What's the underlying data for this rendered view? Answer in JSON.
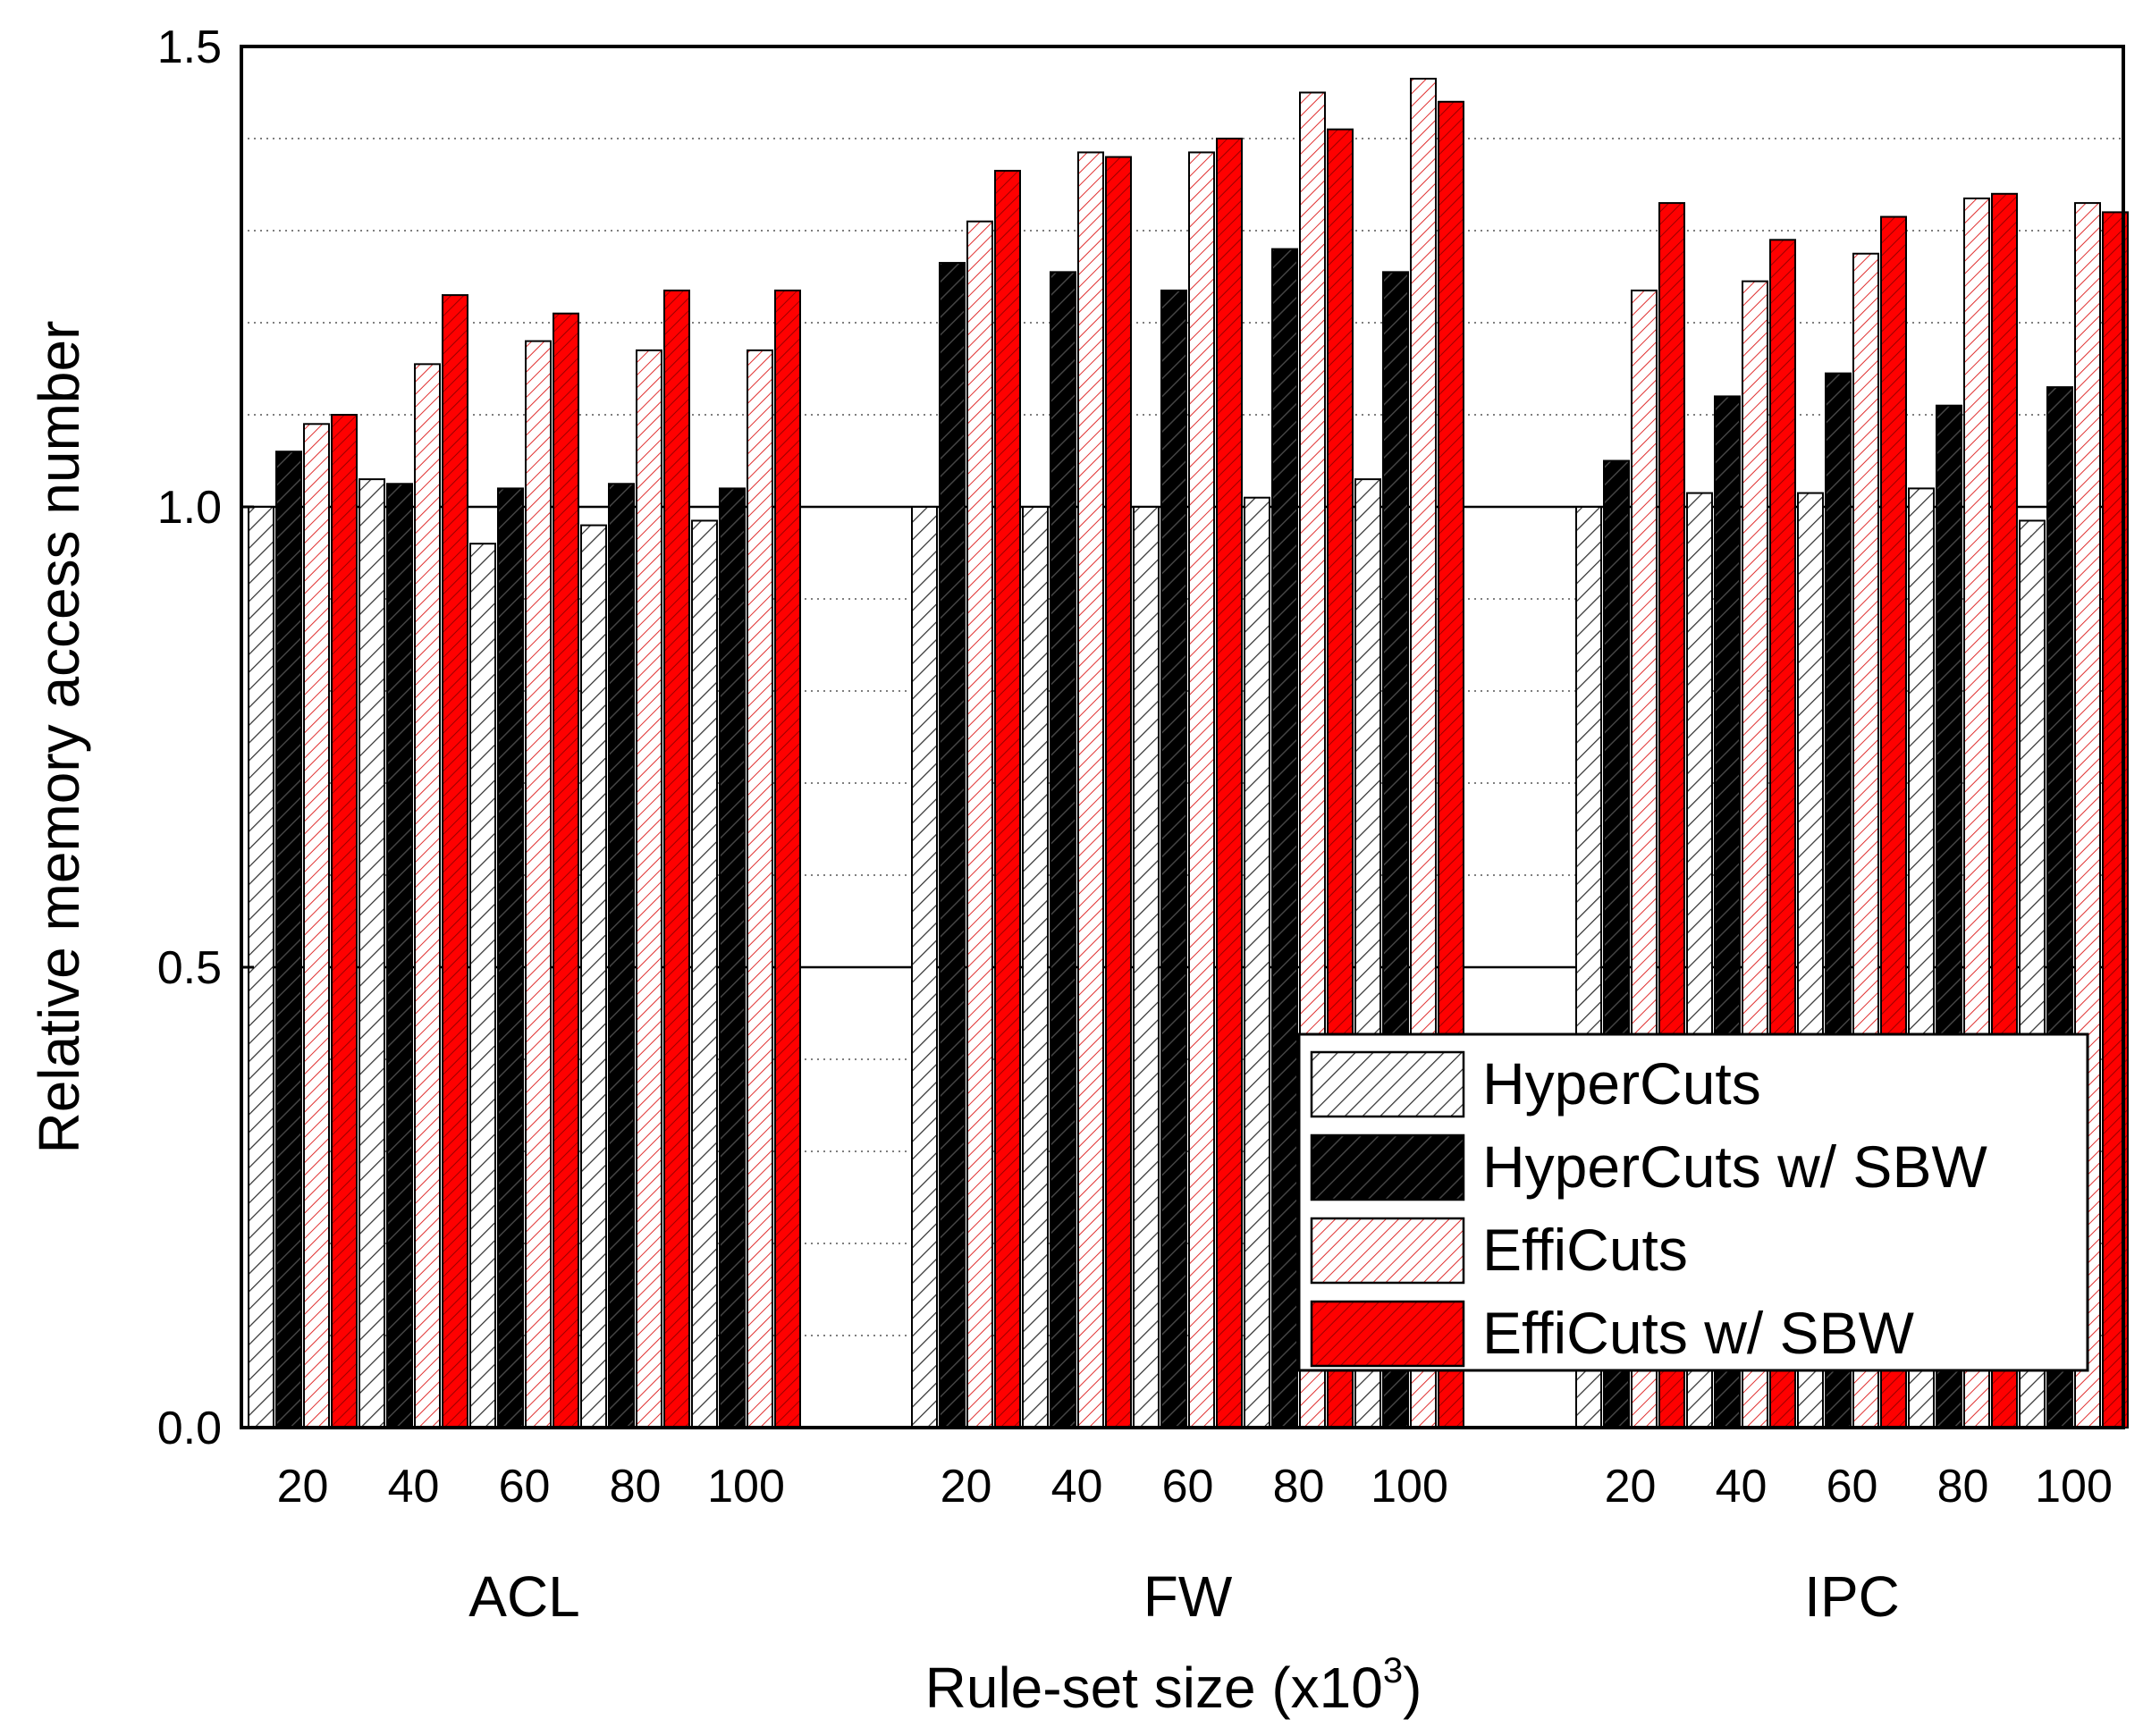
{
  "chart_data": {
    "type": "bar",
    "title": "",
    "xlabel": "Rule-set size (x10",
    "xlabel_superscript": "3",
    "xlabel_suffix": ")",
    "ylabel": "Relative memory access number",
    "ylim": [
      0,
      1.5
    ],
    "yticks": [
      "0.0",
      "0.5",
      "1.0",
      "1.5"
    ],
    "grid": "horizontal dotted minor, solid at 0.5 and 1.0",
    "legend_position": "bottom-right",
    "colors": {
      "hypercuts": "#ffffff",
      "hypercuts_sbw": "#000000",
      "efficuts": "#ffffff",
      "efficuts_sbw": "#ff0000",
      "hatch_dark": "#333333",
      "hatch_red": "#e03030",
      "hatch_on_black": "#444444",
      "hatch_on_red": "#990000"
    },
    "groups": [
      {
        "name": "ACL",
        "categories": [
          "20",
          "40",
          "60",
          "80",
          "100"
        ],
        "series": [
          {
            "name": "HyperCuts",
            "values": [
              1.0,
              1.03,
              0.96,
              0.98,
              0.985
            ]
          },
          {
            "name": "HyperCuts w/ SBW",
            "values": [
              1.06,
              1.025,
              1.02,
              1.025,
              1.02
            ]
          },
          {
            "name": "EffiCuts",
            "values": [
              1.09,
              1.155,
              1.18,
              1.17,
              1.17
            ]
          },
          {
            "name": "EffiCuts w/ SBW",
            "values": [
              1.1,
              1.23,
              1.21,
              1.235,
              1.235
            ]
          }
        ]
      },
      {
        "name": "FW",
        "categories": [
          "20",
          "40",
          "60",
          "80",
          "100"
        ],
        "series": [
          {
            "name": "HyperCuts",
            "values": [
              1.0,
              1.0,
              1.0,
              1.01,
              1.03
            ]
          },
          {
            "name": "HyperCuts w/ SBW",
            "values": [
              1.265,
              1.255,
              1.235,
              1.28,
              1.255
            ]
          },
          {
            "name": "EffiCuts",
            "values": [
              1.31,
              1.385,
              1.385,
              1.45,
              1.465
            ]
          },
          {
            "name": "EffiCuts w/ SBW",
            "values": [
              1.365,
              1.38,
              1.4,
              1.41,
              1.44
            ]
          }
        ]
      },
      {
        "name": "IPC",
        "categories": [
          "20",
          "40",
          "60",
          "80",
          "100"
        ],
        "series": [
          {
            "name": "HyperCuts",
            "values": [
              1.0,
              1.015,
              1.015,
              1.02,
              0.985
            ]
          },
          {
            "name": "HyperCuts w/ SBW",
            "values": [
              1.05,
              1.12,
              1.145,
              1.11,
              1.13
            ]
          },
          {
            "name": "EffiCuts",
            "values": [
              1.235,
              1.245,
              1.275,
              1.335,
              1.33
            ]
          },
          {
            "name": "EffiCuts w/ SBW",
            "values": [
              1.33,
              1.29,
              1.315,
              1.34,
              1.32
            ]
          }
        ]
      }
    ],
    "legend": [
      "HyperCuts",
      "HyperCuts w/ SBW",
      "EffiCuts",
      "EffiCuts w/ SBW"
    ]
  }
}
